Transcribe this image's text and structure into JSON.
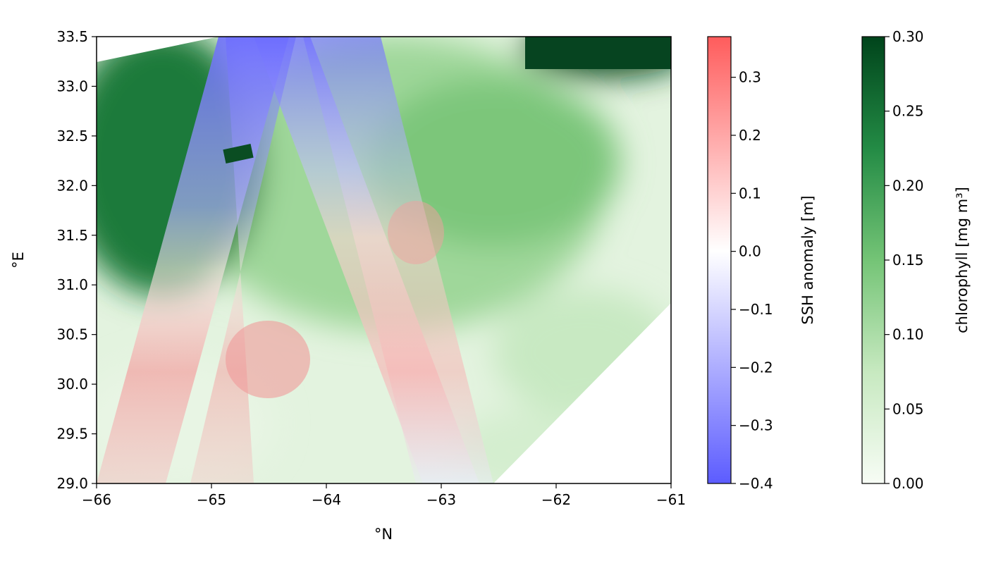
{
  "chart_data": {
    "type": "heatmap",
    "title": "",
    "xlabel": "°N",
    "ylabel": "°E",
    "xlim": [
      -66,
      -61
    ],
    "ylim": [
      29.0,
      33.5
    ],
    "x_ticks": [
      -66,
      -65,
      -64,
      -63,
      -62,
      -61
    ],
    "x_tick_labels": [
      "−66",
      "−65",
      "−64",
      "−63",
      "−62",
      "−61"
    ],
    "y_ticks": [
      29.0,
      29.5,
      30.0,
      30.5,
      31.0,
      31.5,
      32.0,
      32.5,
      33.0,
      33.5
    ],
    "y_tick_labels": [
      "29.0",
      "29.5",
      "30.0",
      "30.5",
      "31.0",
      "31.5",
      "32.0",
      "32.5",
      "33.0",
      "33.5"
    ],
    "grid": false,
    "layers": [
      {
        "name": "chlorophyll",
        "description_level": "background field",
        "colormap": "Greens",
        "regions": [
          {
            "x": [
              -66,
              -64.9
            ],
            "y": [
              31.5,
              33.3
            ],
            "value": 0.26
          },
          {
            "x": [
              -62,
              -61
            ],
            "y": [
              33.1,
              33.5
            ],
            "value": 0.3
          },
          {
            "x": [
              -63.5,
              -61.5
            ],
            "y": [
              31.0,
              33.0
            ],
            "value": 0.15
          },
          {
            "x": [
              -66,
              -64
            ],
            "y": [
              29.0,
              31.0
            ],
            "value": 0.06
          },
          {
            "x": [
              -63.0,
              -61.0
            ],
            "y": [
              29.0,
              31.0
            ],
            "value": 0.08
          }
        ]
      },
      {
        "name": "SSH anomaly",
        "colormap": "bwr",
        "swaths": [
          {
            "x_top": [
              -64.95,
              -63.7
            ],
            "x_bottom": [
              -65.8,
              -64.6
            ],
            "values_top": -0.35,
            "values_bottom": 0.08
          },
          {
            "x_top": [
              -64.4,
              -63.55
            ],
            "x_bottom": [
              -64.45,
              -63.5
            ],
            "values_top": -0.3,
            "values_bottom": 0.1
          },
          {
            "x_top": [
              -64.1,
              -63.5
            ],
            "x_bottom": [
              -63.9,
              -62.6
            ],
            "values_top": -0.25,
            "values_bottom": 0.05
          }
        ]
      }
    ],
    "colorbars": [
      {
        "label": "SSH anomaly [m]",
        "range": [
          -0.4,
          0.37
        ],
        "ticks": [
          -0.4,
          -0.3,
          -0.2,
          -0.1,
          0.0,
          0.1,
          0.2,
          0.3
        ],
        "tick_labels": [
          "−0.4",
          "−0.3",
          "−0.2",
          "−0.1",
          "0.0",
          "0.1",
          "0.2",
          "0.3"
        ],
        "colors": [
          "#5858ff",
          "#ffffff",
          "#ff5858"
        ]
      },
      {
        "label": "chlorophyll [mg m³]",
        "range": [
          0.0,
          0.3
        ],
        "ticks": [
          0.0,
          0.05,
          0.1,
          0.15,
          0.2,
          0.25,
          0.3
        ],
        "tick_labels": [
          "0.00",
          "0.05",
          "0.10",
          "0.15",
          "0.20",
          "0.25",
          "0.30"
        ],
        "colors": [
          "#f7fcf5",
          "#c7e9c0",
          "#74c476",
          "#238b45",
          "#00441b"
        ]
      }
    ]
  }
}
